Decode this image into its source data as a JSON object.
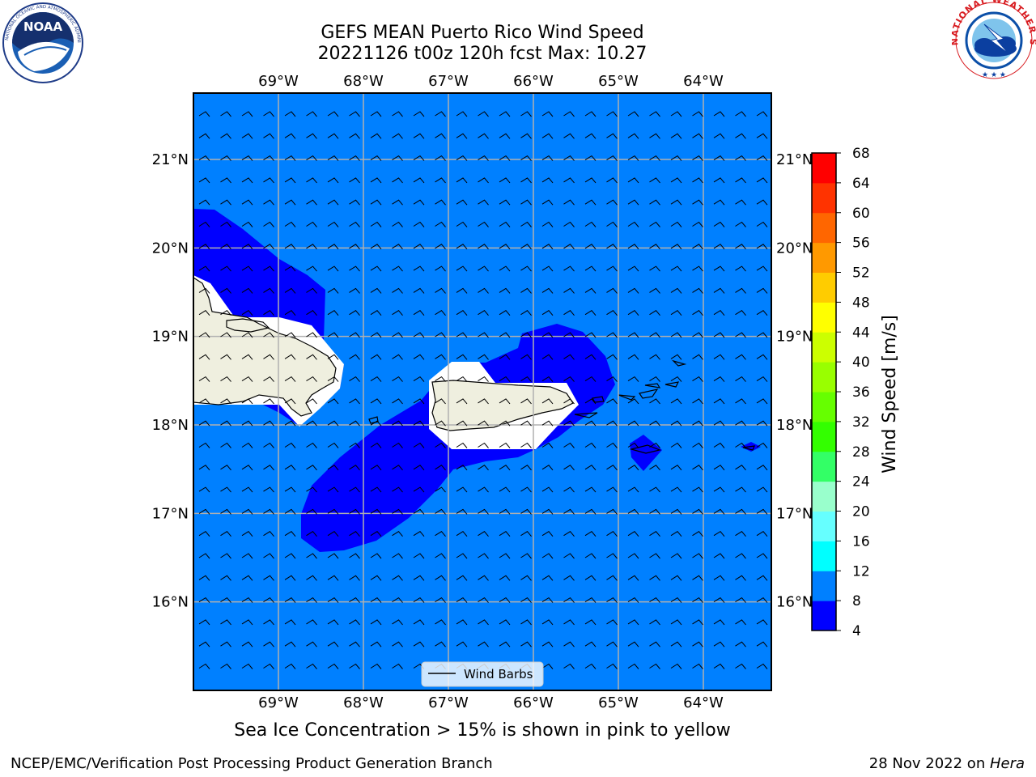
{
  "header": {
    "title_line1": "GEFS MEAN Puerto Rico Wind Speed",
    "title_line2": "20221126 t00z 120h fcst   Max: 10.27"
  },
  "logos": {
    "noaa_text": "NOAA",
    "noaa_ring": "NATIONAL OCEANIC AND ATMOSPHERIC ADMINISTRATION · U.S. DEPARTMENT OF COMMERCE",
    "nws_ring": "NATIONAL WEATHER SERVICE"
  },
  "map": {
    "lon_labels": [
      "69°W",
      "68°W",
      "67°W",
      "66°W",
      "65°W",
      "64°W"
    ],
    "lat_labels": [
      "21°N",
      "20°N",
      "19°N",
      "18°N",
      "17°N",
      "16°N"
    ],
    "lon_range": [
      -70.0,
      -63.2
    ],
    "lat_range": [
      15.0,
      21.75
    ],
    "background_color": "#0080ff",
    "land_color": "#efefdf",
    "legend_label": "Wind Barbs"
  },
  "colorbar": {
    "label": "Wind Speed [m/s]",
    "ticks": [
      "4",
      "8",
      "12",
      "16",
      "20",
      "24",
      "28",
      "32",
      "36",
      "40",
      "44",
      "48",
      "52",
      "56",
      "60",
      "64",
      "68"
    ],
    "colors": [
      "#0000ff",
      "#0080ff",
      "#00ffff",
      "#66ffff",
      "#99ffcc",
      "#33ff66",
      "#33ff00",
      "#66ff00",
      "#99ff00",
      "#ccff00",
      "#ffff00",
      "#ffcc00",
      "#ff9900",
      "#ff6600",
      "#ff3300",
      "#ff0000"
    ]
  },
  "subnote": "Sea Ice Concentration > 15% is shown in pink to yellow",
  "footer": {
    "left": "NCEP/EMC/Verification Post Processing Product Generation Branch",
    "right_date": "28 Nov 2022 on ",
    "right_machine": "Hera"
  }
}
